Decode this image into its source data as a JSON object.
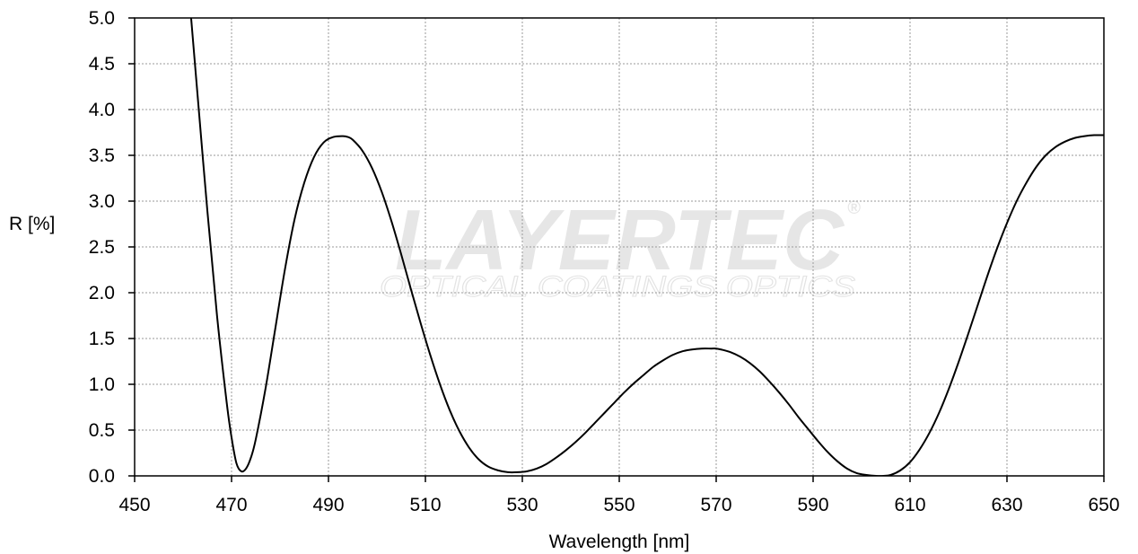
{
  "chart_data": {
    "type": "line",
    "title": "",
    "xlabel": "Wavelength [nm]",
    "ylabel": "R [%]",
    "xlim": [
      450,
      650
    ],
    "ylim": [
      0,
      5
    ],
    "x_ticks": [
      "450",
      "470",
      "490",
      "510",
      "530",
      "550",
      "570",
      "590",
      "610",
      "630",
      "650"
    ],
    "y_ticks": [
      "0.0",
      "0.5",
      "1.0",
      "1.5",
      "2.0",
      "2.5",
      "3.0",
      "3.5",
      "4.0",
      "4.5",
      "5.0"
    ],
    "grid": true,
    "series": [
      {
        "x": [
          461.5,
          463,
          465,
          467,
          469,
          470,
          471,
          472,
          473,
          474,
          475,
          477,
          479,
          481,
          483,
          485,
          487,
          489,
          491,
          493,
          494,
          495,
          497,
          499,
          501,
          503,
          505,
          507,
          509,
          511,
          513,
          515,
          517,
          519,
          521,
          523,
          525,
          527,
          529,
          531,
          533,
          535,
          537,
          539,
          541,
          543,
          545,
          547,
          549,
          551,
          553,
          555,
          557,
          559,
          561,
          563,
          565,
          567,
          569,
          570,
          571,
          573,
          575,
          577,
          579,
          581,
          583,
          585,
          587,
          589,
          591,
          593,
          595,
          597,
          599,
          601,
          603,
          604.5,
          606,
          608,
          610,
          612,
          614,
          616,
          618,
          620,
          622,
          624,
          626,
          628,
          630,
          632,
          634,
          636,
          638,
          640,
          642,
          644,
          646,
          648,
          650
        ],
        "y": [
          5.1,
          4.15,
          2.9,
          1.75,
          0.8,
          0.42,
          0.14,
          0.05,
          0.08,
          0.2,
          0.4,
          0.95,
          1.6,
          2.25,
          2.8,
          3.2,
          3.48,
          3.64,
          3.7,
          3.71,
          3.7,
          3.67,
          3.55,
          3.36,
          3.1,
          2.78,
          2.42,
          2.04,
          1.67,
          1.32,
          1.0,
          0.72,
          0.49,
          0.31,
          0.18,
          0.1,
          0.06,
          0.04,
          0.04,
          0.05,
          0.08,
          0.13,
          0.2,
          0.28,
          0.37,
          0.47,
          0.58,
          0.69,
          0.8,
          0.91,
          1.01,
          1.1,
          1.19,
          1.26,
          1.32,
          1.36,
          1.38,
          1.39,
          1.39,
          1.39,
          1.38,
          1.35,
          1.3,
          1.23,
          1.14,
          1.03,
          0.91,
          0.78,
          0.64,
          0.51,
          0.38,
          0.26,
          0.16,
          0.08,
          0.03,
          0.01,
          0.0,
          0.0,
          0.01,
          0.06,
          0.15,
          0.29,
          0.47,
          0.69,
          0.95,
          1.24,
          1.55,
          1.87,
          2.19,
          2.49,
          2.76,
          3.0,
          3.2,
          3.37,
          3.5,
          3.59,
          3.65,
          3.69,
          3.71,
          3.72,
          3.72
        ]
      }
    ]
  },
  "watermark": {
    "brand": "LAYERTEC",
    "registered": "®",
    "tagline": "OPTICAL COATINGS  OPTICS"
  }
}
